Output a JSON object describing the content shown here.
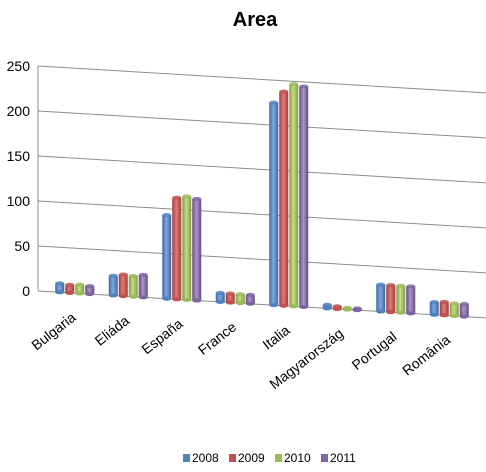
{
  "chart_data": {
    "type": "bar",
    "title": "Area",
    "categories": [
      "Bulgaria",
      "Eliáda",
      "España",
      "France",
      "Italia",
      "Magyarország",
      "Portugal",
      "România"
    ],
    "series": [
      {
        "name": "2008",
        "color": "#4f81bd",
        "values": [
          10,
          22,
          93,
          10,
          225,
          4,
          30,
          14
        ]
      },
      {
        "name": "2009",
        "color": "#c0504d",
        "values": [
          9,
          24,
          113,
          10,
          238,
          3,
          30,
          15
        ]
      },
      {
        "name": "2010",
        "color": "#9bbb59",
        "values": [
          10,
          23,
          115,
          10,
          247,
          2,
          30,
          14
        ]
      },
      {
        "name": "2011",
        "color": "#8064a2",
        "values": [
          9,
          25,
          113,
          10,
          245,
          2,
          30,
          14
        ]
      }
    ],
    "yticks": [
      "0",
      "50",
      "100",
      "150",
      "200",
      "250"
    ],
    "ylim": [
      0,
      250
    ],
    "grid": true,
    "legend": "bottom"
  }
}
